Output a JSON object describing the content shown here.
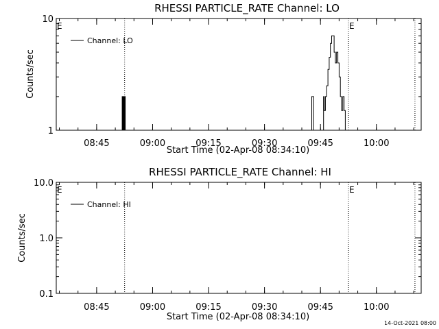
{
  "chart_data": [
    {
      "type": "line",
      "title": "RHESSI PARTICLE_RATE Channel: LO",
      "xlabel": "Start Time (02-Apr-08 08:34:10)",
      "ylabel": "Counts/sec",
      "yscale": "log",
      "ylim": [
        1,
        10
      ],
      "xlim": [
        "08:34:10",
        "10:12:00"
      ],
      "y_tick_labels": [
        "1",
        "10"
      ],
      "x_tick_labels": [
        "08:45",
        "09:00",
        "09:15",
        "09:30",
        "09:45",
        "10:00"
      ],
      "legend": {
        "position": "top-left",
        "entries": [
          "Channel: LO"
        ]
      },
      "event_markers": {
        "label": "E",
        "times": [
          "08:34:10",
          "09:52:30"
        ]
      },
      "dotted_lines": [
        "08:52:30",
        "09:52:30",
        "10:10:20"
      ],
      "series": [
        {
          "name": "Channel: LO",
          "x": [
            "08:51:40",
            "08:51:50",
            "08:52:00",
            "08:52:10",
            "08:52:20",
            "08:52:30",
            "08:52:40",
            "09:42:30",
            "09:42:40",
            "09:43:00",
            "09:43:10",
            "09:45:40",
            "09:45:50",
            "09:46:00",
            "09:46:20",
            "09:46:40",
            "09:47:00",
            "09:47:20",
            "09:47:40",
            "09:48:00",
            "09:48:20",
            "09:48:40",
            "09:49:00",
            "09:49:20",
            "09:49:40",
            "09:50:00",
            "09:50:20",
            "09:50:40",
            "09:51:00",
            "09:51:20",
            "09:51:40"
          ],
          "values": [
            1,
            2,
            1,
            2,
            1,
            2,
            1,
            1,
            2,
            2,
            1,
            1,
            2,
            1.5,
            2,
            2.5,
            3.5,
            4.5,
            6,
            7,
            7,
            5,
            4,
            5,
            4,
            3,
            2,
            1.5,
            2,
            1.5,
            1
          ]
        }
      ]
    },
    {
      "type": "line",
      "title": "RHESSI PARTICLE_RATE Channel: HI",
      "xlabel": "Start Time (02-Apr-08 08:34:10)",
      "ylabel": "Counts/sec",
      "yscale": "log",
      "ylim": [
        0.1,
        10
      ],
      "xlim": [
        "08:34:10",
        "10:12:00"
      ],
      "y_tick_labels": [
        "0.1",
        "1.0",
        "10.0"
      ],
      "x_tick_labels": [
        "08:45",
        "09:00",
        "09:15",
        "09:30",
        "09:45",
        "10:00"
      ],
      "legend": {
        "position": "top-left",
        "entries": [
          "Channel: HI"
        ]
      },
      "event_markers": {
        "label": "E",
        "times": [
          "08:34:10",
          "09:52:30"
        ]
      },
      "dotted_lines": [
        "08:52:30",
        "09:52:30",
        "10:10:20"
      ],
      "series": [
        {
          "name": "Channel: HI",
          "x": [],
          "values": []
        }
      ]
    }
  ],
  "footer": {
    "timestamp": "14-Oct-2021 08:00"
  }
}
